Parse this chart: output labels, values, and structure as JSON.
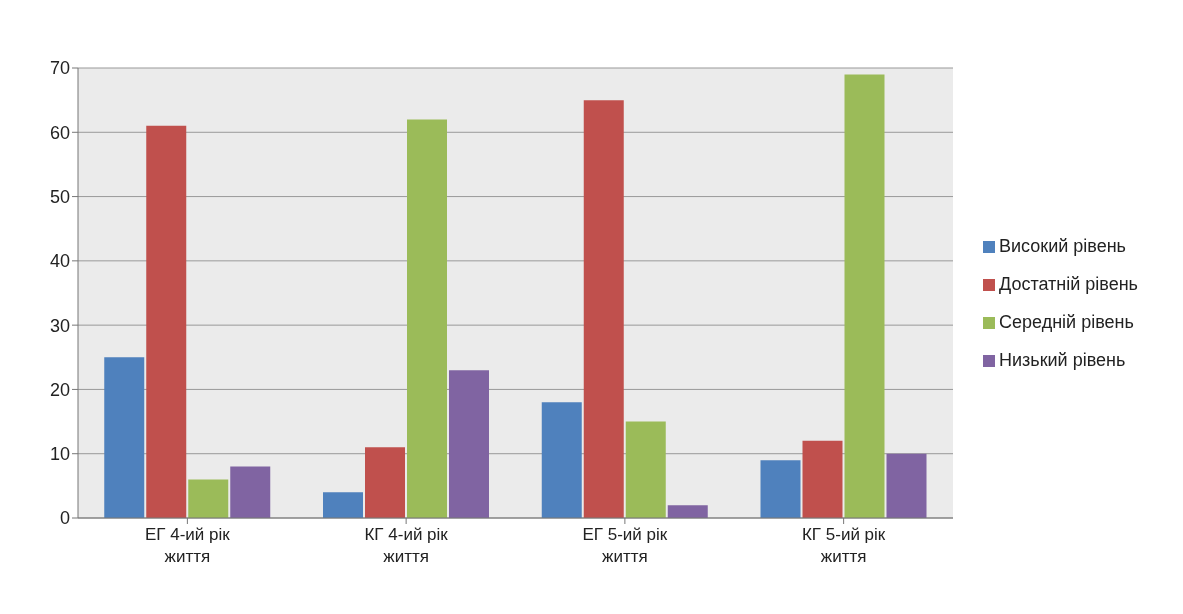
{
  "chart_data": {
    "type": "bar",
    "categories": [
      "ЕГ 4-ий рік життя",
      "КГ 4-ий рік життя",
      "ЕГ 5-ий рік життя",
      "КГ 5-ий рік життя"
    ],
    "series": [
      {
        "name": "Високий рівень",
        "color": "#4f81bd",
        "values": [
          25,
          4,
          18,
          9
        ]
      },
      {
        "name": "Достатній рівень",
        "color": "#c0504d",
        "values": [
          61,
          11,
          65,
          12
        ]
      },
      {
        "name": "Середній рівень",
        "color": "#9bbb59",
        "values": [
          6,
          62,
          15,
          69
        ]
      },
      {
        "name": "Низький рівень",
        "color": "#8064a2",
        "values": [
          8,
          23,
          2,
          10
        ]
      }
    ],
    "ylim": [
      0,
      70
    ],
    "yticks": [
      0,
      10,
      20,
      30,
      40,
      50,
      60,
      70
    ],
    "grid": "y",
    "legend": "right"
  }
}
